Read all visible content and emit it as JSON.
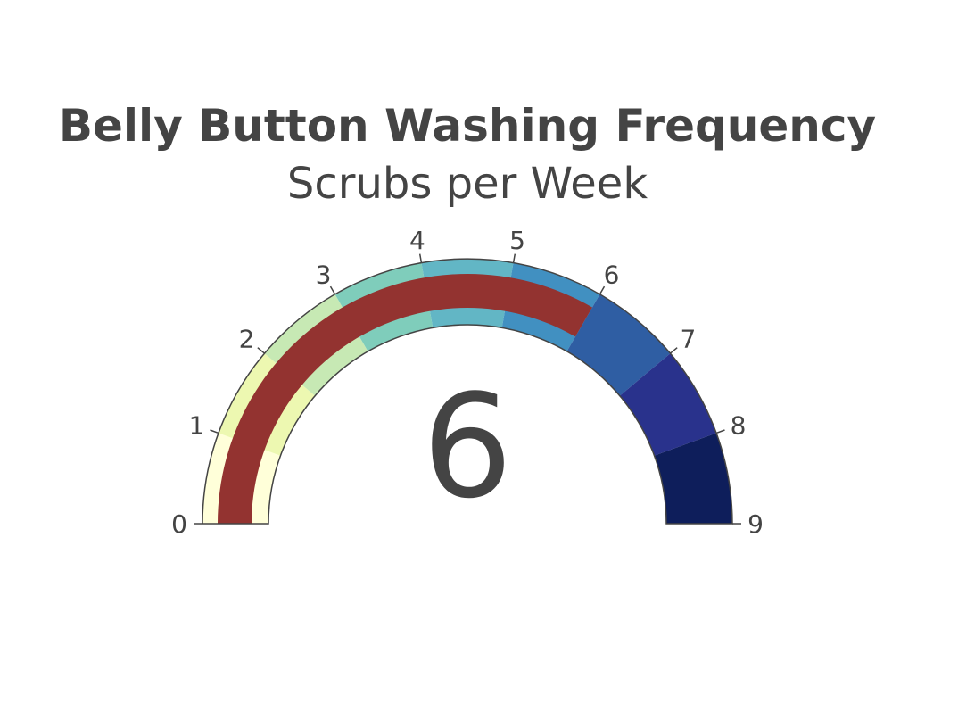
{
  "chart_data": {
    "type": "gauge",
    "title": "Belly Button Washing Frequency",
    "subtitle": "Scrubs per Week",
    "value": 6,
    "value_label": "6",
    "range": [
      0,
      9
    ],
    "ticks": [
      "0",
      "1",
      "2",
      "3",
      "4",
      "5",
      "6",
      "7",
      "8",
      "9"
    ],
    "steps": [
      {
        "range": [
          0,
          1
        ],
        "color": "#ffffd9"
      },
      {
        "range": [
          1,
          2
        ],
        "color": "#edf8b1"
      },
      {
        "range": [
          2,
          3
        ],
        "color": "#c7e9b4"
      },
      {
        "range": [
          3,
          4
        ],
        "color": "#7fcdbb"
      },
      {
        "range": [
          4,
          5
        ],
        "color": "#62b6c5"
      },
      {
        "range": [
          5,
          6
        ],
        "color": "#4190c1"
      },
      {
        "range": [
          6,
          7
        ],
        "color": "#2f5ea3"
      },
      {
        "range": [
          7,
          8
        ],
        "color": "#29328c"
      },
      {
        "range": [
          8,
          9
        ],
        "color": "#0e1e5b"
      }
    ],
    "bar_color": "#933330"
  }
}
